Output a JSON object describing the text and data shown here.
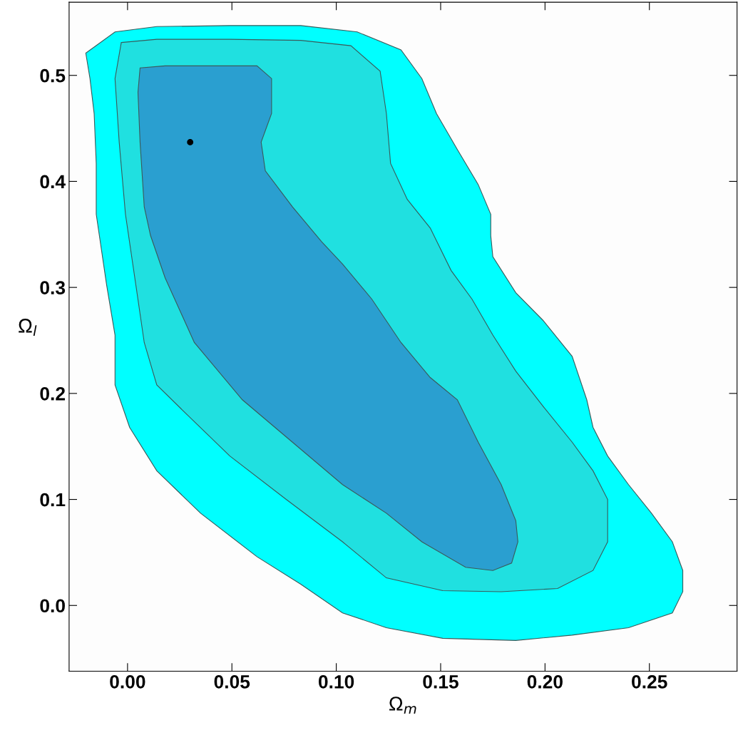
{
  "chart_data": {
    "type": "area",
    "xlabel": "Ω$_{m}$",
    "ylabel": "Ω$_{l}$",
    "xlim": [
      -0.028,
      0.292
    ],
    "ylim": [
      -0.062,
      0.569
    ],
    "xticks": [
      {
        "value": 0,
        "label": "0.00"
      },
      {
        "value": 0.05,
        "label": "0.05"
      },
      {
        "value": 0.1,
        "label": "0.10"
      },
      {
        "value": 0.15,
        "label": "0.15"
      },
      {
        "value": 0.2,
        "label": "0.20"
      },
      {
        "value": 0.25,
        "label": "0.25"
      }
    ],
    "yticks": [
      {
        "value": 0,
        "label": "0.0"
      },
      0.1,
      0.2,
      0.3,
      0.4,
      0.5
    ],
    "grid": false,
    "series": [
      {
        "color": "#00ffff",
        "x": [
          -0.02,
          -0.006,
          0.014,
          0.049,
          0.083,
          0.11,
          0.131,
          0.141,
          0.148,
          0.158,
          0.168,
          0.174,
          0.174,
          0.175,
          0.186,
          0.199,
          0.213,
          0.22,
          0.223,
          0.23,
          0.24,
          0.251,
          0.261,
          0.266,
          0.266,
          0.261,
          0.24,
          0.213,
          0.186,
          0.151,
          0.124,
          0.103,
          0.083,
          0.062,
          0.035,
          0.014,
          0.001,
          -0.006,
          -0.006,
          -0.01,
          -0.015,
          -0.015,
          -0.016,
          -0.018
        ],
        "values": [
          0.521,
          0.541,
          0.546,
          0.547,
          0.547,
          0.541,
          0.524,
          0.497,
          0.464,
          0.43,
          0.397,
          0.369,
          0.349,
          0.329,
          0.295,
          0.269,
          0.235,
          0.194,
          0.168,
          0.141,
          0.114,
          0.087,
          0.06,
          0.033,
          0.013,
          -0.007,
          -0.021,
          -0.028,
          -0.033,
          -0.031,
          -0.021,
          -0.007,
          0.02,
          0.046,
          0.087,
          0.127,
          0.168,
          0.208,
          0.255,
          0.302,
          0.369,
          0.417,
          0.464,
          0.497
        ]
      },
      {
        "color": "#20e0e0",
        "x": [
          -0.003,
          0.014,
          0.049,
          0.083,
          0.107,
          0.121,
          0.124,
          0.126,
          0.134,
          0.145,
          0.155,
          0.165,
          0.175,
          0.186,
          0.199,
          0.213,
          0.223,
          0.23,
          0.23,
          0.223,
          0.206,
          0.179,
          0.151,
          0.124,
          0.103,
          0.076,
          0.049,
          0.028,
          0.014,
          0.008,
          0.004,
          -0.001,
          -0.004,
          -0.006
        ],
        "values": [
          0.531,
          0.534,
          0.534,
          0.533,
          0.528,
          0.504,
          0.464,
          0.417,
          0.383,
          0.356,
          0.316,
          0.289,
          0.255,
          0.221,
          0.188,
          0.154,
          0.127,
          0.1,
          0.06,
          0.033,
          0.016,
          0.013,
          0.014,
          0.026,
          0.06,
          0.1,
          0.141,
          0.181,
          0.208,
          0.248,
          0.302,
          0.369,
          0.437,
          0.497
        ]
      },
      {
        "color": "#2a9fd0",
        "x": [
          0.006,
          0.018,
          0.042,
          0.062,
          0.069,
          0.069,
          0.064,
          0.066,
          0.079,
          0.093,
          0.103,
          0.117,
          0.131,
          0.145,
          0.158,
          0.168,
          0.179,
          0.186,
          0.187,
          0.184,
          0.175,
          0.162,
          0.141,
          0.124,
          0.103,
          0.079,
          0.055,
          0.032,
          0.018,
          0.011,
          0.008,
          0.006,
          0.005
        ],
        "values": [
          0.507,
          0.509,
          0.509,
          0.509,
          0.497,
          0.464,
          0.437,
          0.41,
          0.376,
          0.343,
          0.322,
          0.289,
          0.248,
          0.215,
          0.194,
          0.154,
          0.114,
          0.08,
          0.06,
          0.04,
          0.033,
          0.036,
          0.06,
          0.087,
          0.114,
          0.154,
          0.194,
          0.248,
          0.309,
          0.349,
          0.376,
          0.437,
          0.484
        ]
      },
      {
        "type": "scatter",
        "color": "#000000",
        "marker": "circle",
        "x": [
          0.03
        ],
        "values": [
          0.437
        ]
      }
    ]
  }
}
